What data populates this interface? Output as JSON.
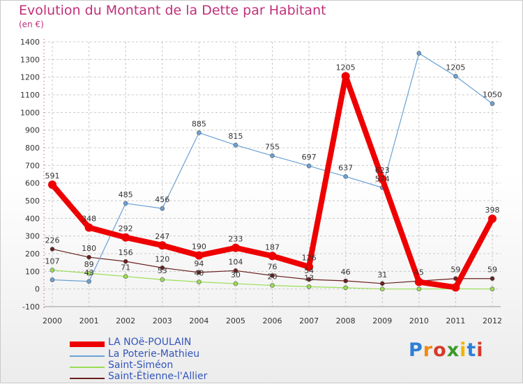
{
  "chart_data": {
    "type": "line",
    "title": "Evolution du Montant de la Dette par Habitant",
    "subtitle": "(en €)",
    "ylim": [
      -100,
      1400
    ],
    "yticks": [
      -100,
      0,
      100,
      200,
      300,
      400,
      500,
      600,
      700,
      800,
      900,
      1000,
      1100,
      1200,
      1300,
      1400
    ],
    "categories": [
      "2000",
      "2001",
      "2002",
      "2003",
      "2004",
      "2005",
      "2006",
      "2007",
      "2008",
      "2009",
      "2010",
      "2011",
      "2012"
    ],
    "grid": true,
    "legend_position": "bottom-left",
    "series": [
      {
        "name": "LA NOë-POULAIN",
        "color": "#ee0000",
        "values": [
          591,
          348,
          292,
          247,
          190,
          233,
          187,
          126,
          1205,
          623,
          40,
          9,
          398
        ],
        "labels": [
          "591",
          "348",
          "292",
          "247",
          "190",
          "233",
          "187",
          "126",
          "1205",
          "623",
          "",
          "",
          "398"
        ]
      },
      {
        "name": "La Poterie-Mathieu",
        "color": "#6aa1d4",
        "values": [
          52,
          43,
          485,
          456,
          885,
          815,
          755,
          697,
          637,
          574,
          1335,
          1205,
          1050
        ],
        "labels": [
          "",
          "43",
          "485",
          "456",
          "885",
          "815",
          "755",
          "697",
          "637",
          "574",
          "",
          "1205",
          "1050"
        ]
      },
      {
        "name": "Saint-Siméon",
        "color": "#99dd55",
        "values": [
          107,
          89,
          71,
          53,
          40,
          30,
          20,
          13,
          7,
          0,
          0,
          1,
          0
        ],
        "labels": [
          "107",
          "89",
          "71",
          "53",
          "40",
          "30",
          "20",
          "13",
          "",
          "",
          "",
          "",
          ""
        ]
      },
      {
        "name": "Saint-Étienne-l'Allier",
        "color": "#6b1f1f",
        "values": [
          226,
          180,
          156,
          120,
          94,
          104,
          76,
          54,
          46,
          31,
          45,
          59,
          59
        ],
        "labels": [
          "226",
          "180",
          "156",
          "120",
          "94",
          "104",
          "76",
          "54",
          "46",
          "31",
          "45",
          "59",
          "59"
        ]
      }
    ]
  },
  "logo": {
    "text": "Proxiti",
    "letter_colors": [
      "#2e7fd6",
      "#f08a10",
      "#d63a2a",
      "#3a9a2a",
      "#f2b400",
      "#2e7fd6",
      "#d63a2a"
    ]
  }
}
